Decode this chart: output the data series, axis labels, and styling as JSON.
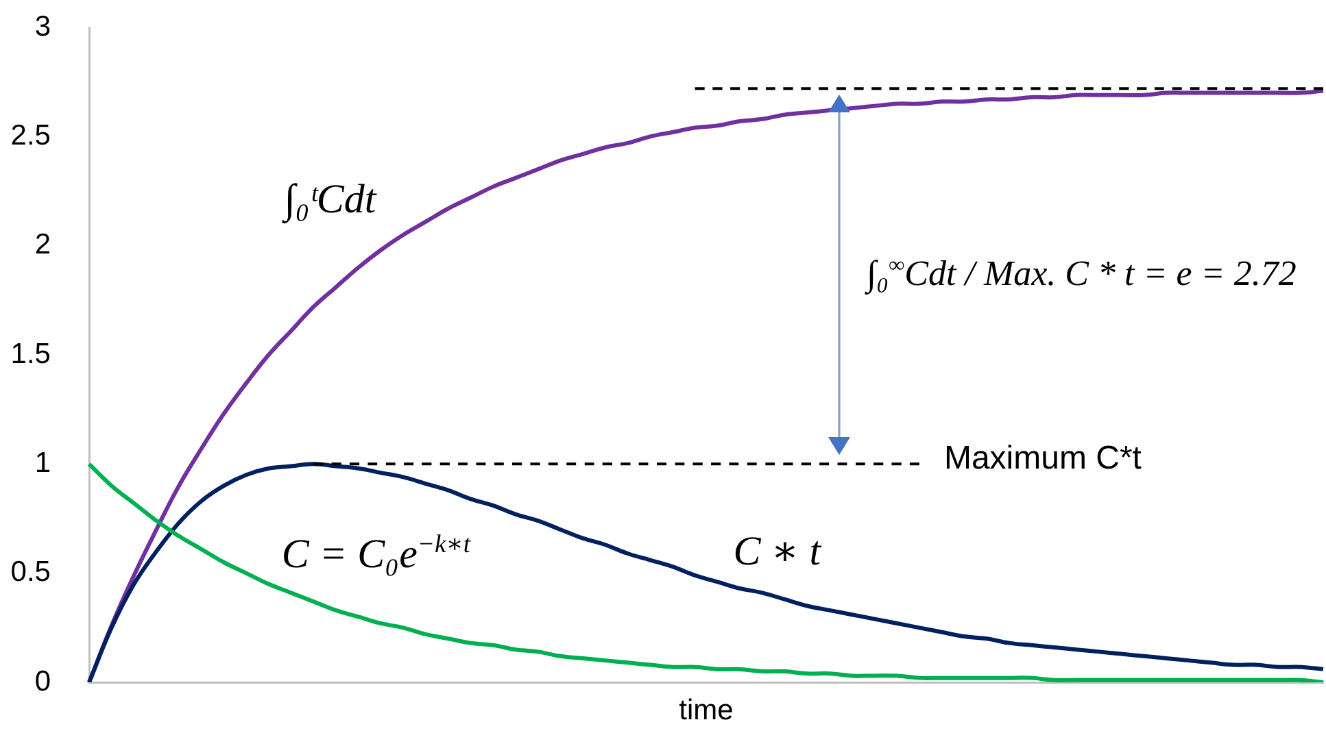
{
  "chart_data": {
    "type": "line",
    "xlabel": "time",
    "annotations": [
      "∫₀$^{∞}$Cdt / Max. C * t = e = 2.72"
    ],
    "categories": [
      null,
      null,
      null,
      null,
      null,
      null,
      null,
      null,
      null,
      null,
      null,
      null,
      null,
      null,
      null,
      null,
      null,
      null,
      null,
      null,
      null,
      null,
      null,
      null,
      null,
      null,
      null,
      null,
      null,
      null,
      null,
      null,
      null,
      null,
      null,
      null,
      null,
      null,
      null,
      null,
      null,
      null,
      null,
      null,
      null,
      null,
      null,
      null,
      null,
      null,
      null,
      null,
      null,
      null,
      null,
      null
    ],
    "series": [
      {
        "name": "C = C₀e$^{−k∗t}$",
        "color": "#00b050",
        "values": [
          1,
          0.9,
          0.82,
          0.74,
          0.67,
          0.61,
          0.55,
          0.5,
          0.45,
          0.41,
          0.37,
          0.33,
          0.3,
          0.27,
          0.25,
          0.22,
          0.2,
          0.18,
          0.17,
          0.15,
          0.14,
          0.12,
          0.11,
          0.1,
          0.09,
          0.08,
          0.07,
          0.07,
          0.06,
          0.06,
          0.05,
          0.05,
          0.04,
          0.04,
          0.03,
          0.03,
          0.03,
          0.02,
          0.02,
          0.02,
          0.02,
          0.02,
          0.02,
          0.01,
          0.01,
          0.01,
          0.01,
          0.01,
          0.01,
          0.01,
          0.01,
          0.01,
          0.01,
          0.01,
          0.01,
          0
        ]
      },
      {
        "name": "C ∗ t",
        "color": "#002060",
        "values": [
          0,
          0.25,
          0.45,
          0.6,
          0.73,
          0.83,
          0.9,
          0.95,
          0.98,
          0.99,
          1,
          0.99,
          0.98,
          0.96,
          0.94,
          0.91,
          0.88,
          0.84,
          0.81,
          0.77,
          0.74,
          0.7,
          0.66,
          0.63,
          0.59,
          0.56,
          0.53,
          0.49,
          0.46,
          0.43,
          0.41,
          0.38,
          0.35,
          0.33,
          0.31,
          0.29,
          0.27,
          0.25,
          0.23,
          0.21,
          0.2,
          0.18,
          0.17,
          0.16,
          0.15,
          0.14,
          0.13,
          0.12,
          0.11,
          0.1,
          0.09,
          0.08,
          0.08,
          0.07,
          0.07,
          0.06
        ]
      },
      {
        "name": "∫₀ᵗCdt",
        "color": "#7030a0",
        "values": [
          0,
          0.26,
          0.49,
          0.7,
          0.9,
          1.07,
          1.23,
          1.37,
          1.5,
          1.61,
          1.72,
          1.81,
          1.9,
          1.98,
          2.05,
          2.11,
          2.17,
          2.22,
          2.27,
          2.31,
          2.35,
          2.39,
          2.42,
          2.45,
          2.47,
          2.5,
          2.52,
          2.54,
          2.55,
          2.57,
          2.58,
          2.6,
          2.61,
          2.62,
          2.63,
          2.64,
          2.65,
          2.65,
          2.66,
          2.66,
          2.67,
          2.67,
          2.68,
          2.68,
          2.69,
          2.69,
          2.69,
          2.69,
          2.7,
          2.7,
          2.7,
          2.7,
          2.7,
          2.7,
          2.7,
          2.71
        ]
      },
      {
        "color": "#000000",
        "line_style": "dashed",
        "values": [
          null,
          null,
          null,
          null,
          null,
          null,
          null,
          null,
          null,
          null,
          null,
          null,
          null,
          null,
          null,
          null,
          null,
          null,
          null,
          null,
          null,
          null,
          null,
          null,
          null,
          null,
          null,
          2.72,
          2.72,
          2.72,
          2.72,
          2.72,
          2.72,
          2.72,
          2.72,
          2.72,
          2.72,
          2.72,
          2.72,
          2.72,
          2.72,
          2.72,
          2.72,
          2.72,
          2.72,
          2.72,
          2.72,
          2.72,
          2.72,
          2.72,
          2.72,
          2.72,
          2.72,
          2.72,
          2.72,
          2.72
        ]
      },
      {
        "name": "Maximum C*t",
        "color": "#000000",
        "line_style": "dashed",
        "values": [
          null,
          null,
          null,
          null,
          null,
          null,
          null,
          null,
          null,
          null,
          1,
          1,
          1,
          1,
          1,
          1,
          1,
          1,
          1,
          1,
          1,
          1,
          1,
          1,
          1,
          1,
          1,
          1,
          1,
          1,
          1,
          1,
          1,
          1,
          1,
          1,
          1,
          1,
          null,
          null,
          null,
          null,
          null,
          null,
          null,
          null,
          null,
          null,
          null,
          null,
          null,
          null,
          null,
          null,
          null,
          null
        ]
      }
    ],
    "ylim": [
      0,
      3
    ],
    "yticks": [
      0,
      0.5,
      1,
      1.5,
      2,
      2.5,
      3
    ],
    "tick_labels": "y",
    "grid": false,
    "legend": false,
    "marker": "none",
    "line_style": "solid"
  }
}
